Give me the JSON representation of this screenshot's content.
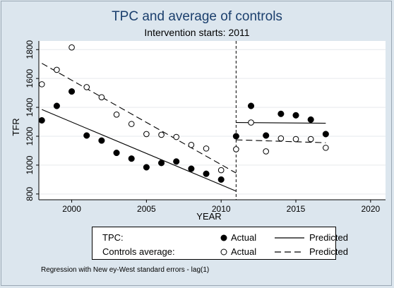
{
  "chart_data": {
    "type": "scatter",
    "title": "TPC and average of controls",
    "subtitle": "Intervention starts: 2011",
    "xlabel": "YEAR",
    "ylabel": "TFR",
    "xlim": [
      1997.8,
      2021
    ],
    "ylim": [
      760,
      1860
    ],
    "xticks": [
      2000,
      2005,
      2010,
      2015,
      2020
    ],
    "yticks": [
      800,
      1000,
      1200,
      1400,
      1600,
      1800
    ],
    "intervention_year": 2011,
    "series": [
      {
        "name": "Actual",
        "group": "TPC:",
        "marker": "filled-circle",
        "x": [
          1998,
          1999,
          2000,
          2001,
          2002,
          2003,
          2004,
          2005,
          2006,
          2007,
          2008,
          2009,
          2010,
          2011,
          2012,
          2013,
          2014,
          2015,
          2016,
          2017
        ],
        "y": [
          1310,
          1410,
          1510,
          1205,
          1170,
          1085,
          1045,
          985,
          1015,
          1025,
          975,
          940,
          900,
          1200,
          1410,
          1205,
          1355,
          1345,
          1315,
          1215
        ]
      },
      {
        "name": "Actual",
        "group": "Controls average:",
        "marker": "hollow-circle",
        "x": [
          1998,
          1999,
          2000,
          2001,
          2002,
          2003,
          2004,
          2005,
          2006,
          2007,
          2008,
          2009,
          2010,
          2011,
          2012,
          2013,
          2014,
          2015,
          2016,
          2017
        ],
        "y": [
          1560,
          1660,
          1815,
          1540,
          1470,
          1350,
          1285,
          1215,
          1210,
          1195,
          1140,
          1115,
          965,
          1110,
          1295,
          1095,
          1185,
          1180,
          1180,
          1120
        ]
      }
    ],
    "fitted_lines": [
      {
        "name": "Predicted",
        "group": "TPC:",
        "style": "solid",
        "x": [
          1998,
          2011
        ],
        "y": [
          1385,
          820
        ]
      },
      {
        "name": "Predicted",
        "group": "TPC:",
        "style": "solid",
        "x": [
          2011,
          2017
        ],
        "y": [
          1295,
          1290
        ]
      },
      {
        "name": "Predicted",
        "group": "Controls average:",
        "style": "dashed",
        "x": [
          1998,
          2011
        ],
        "y": [
          1705,
          945
        ]
      },
      {
        "name": "Predicted",
        "group": "Controls average:",
        "style": "dashed",
        "x": [
          2011,
          2017
        ],
        "y": [
          1175,
          1155
        ]
      }
    ]
  },
  "legend": {
    "tpc_label": "TPC:",
    "controls_label": "Controls average:",
    "actual_label": "Actual",
    "predicted_label": "Predicted"
  },
  "footnote": "Regression with New ey-West standard errors - lag(1)",
  "colors": {
    "background": "#dce6ee",
    "title": "#1b3f6d",
    "plot_area": "#ffffff"
  }
}
